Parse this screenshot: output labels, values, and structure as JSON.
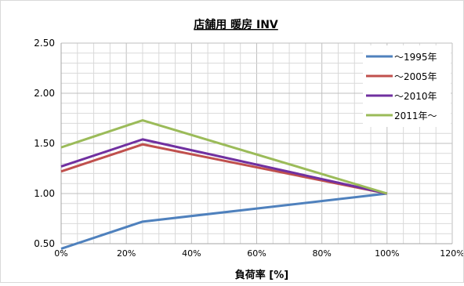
{
  "chart_data": {
    "type": "line",
    "title": "店舗用 暖房 INV",
    "xlabel": "負荷率 [%]",
    "ylabel": "",
    "xlim": [
      0,
      120
    ],
    "ylim": [
      0.5,
      2.5
    ],
    "x_ticks": [
      "0%",
      "20%",
      "40%",
      "60%",
      "80%",
      "100%",
      "120%"
    ],
    "y_ticks": [
      "0.50",
      "1.00",
      "1.50",
      "2.00",
      "2.50"
    ],
    "grid": true,
    "legend_position": "top-right",
    "series": [
      {
        "name": "～1995年",
        "color": "#4f81bd",
        "x": [
          0,
          25,
          100
        ],
        "y": [
          0.45,
          0.72,
          1.0
        ]
      },
      {
        "name": "～2005年",
        "color": "#c0504d",
        "x": [
          0,
          25,
          100
        ],
        "y": [
          1.22,
          1.49,
          1.0
        ]
      },
      {
        "name": "～2010年",
        "color": "#7030a0",
        "x": [
          0,
          25,
          100
        ],
        "y": [
          1.27,
          1.54,
          1.0
        ]
      },
      {
        "name": "2011年～",
        "color": "#9bbb59",
        "x": [
          0,
          25,
          100
        ],
        "y": [
          1.46,
          1.73,
          1.0
        ]
      }
    ]
  }
}
